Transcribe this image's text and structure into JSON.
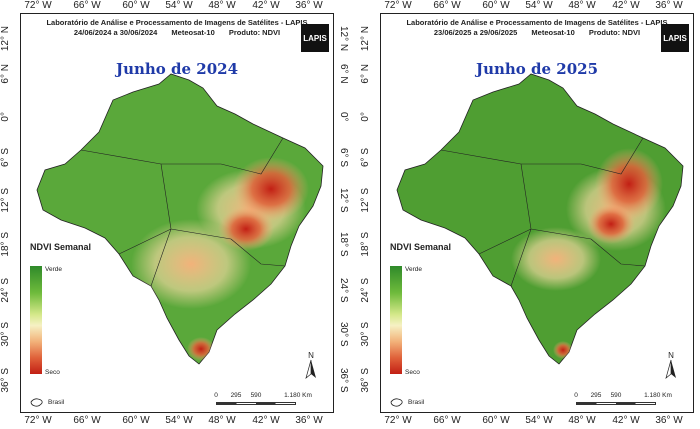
{
  "header": {
    "line1": "Laboratório de Análise e Processamento de Imagens de Satélites - LAPIS",
    "satellite": "Meteosat-10",
    "product": "Produto: NDVI"
  },
  "logo": "LAPIS",
  "axes": {
    "lon": [
      "72° W",
      "66° W",
      "60° W",
      "54° W",
      "48° W",
      "42° W",
      "36° W"
    ],
    "lat": [
      "12° N",
      "6° N",
      "0°",
      "6° S",
      "12° S",
      "18° S",
      "24° S",
      "30° S",
      "36° S"
    ]
  },
  "legend": {
    "title": "NDVI Semanal",
    "high": "Verde",
    "low": "Seco",
    "country": "Brasil"
  },
  "scale_labels": [
    "0",
    "295",
    "590",
    "1.180 Km"
  ],
  "north": "N",
  "panels": [
    {
      "period": "24/06/2024  a  30/06/2024",
      "title": "Junho de 2024"
    },
    {
      "period": "23/06/2025  a  29/06/2025",
      "title": "Junho de 2025"
    }
  ],
  "colors": {
    "title": "#1f3aa8",
    "vegetation": "#5aa83a",
    "dry": "#c21f14"
  }
}
